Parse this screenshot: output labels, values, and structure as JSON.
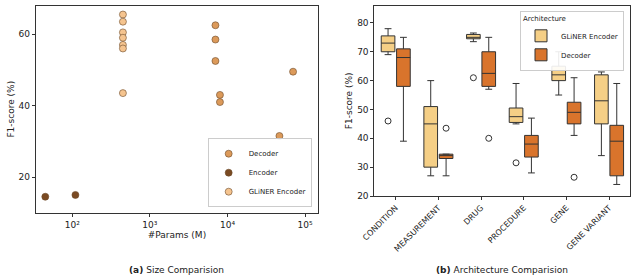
{
  "chart_data": [
    {
      "type": "scatter",
      "title": "(a) Size Comparision",
      "x_label": "#Params (M)",
      "y_label": "F1-score (%)",
      "log": "x",
      "xlim": [
        34,
        147000
      ],
      "xticks": [
        {
          "value": 100,
          "label": "10²"
        },
        {
          "value": 1000,
          "label": "10³"
        },
        {
          "value": 10000,
          "label": "10⁴"
        },
        {
          "value": 100000,
          "label": "10⁵"
        }
      ],
      "ylim": [
        10,
        68
      ],
      "yticks": [
        20,
        40,
        60
      ],
      "grid": false,
      "legend": "lower right",
      "series": [
        {
          "name": "Decoder",
          "color": "#dc9a5a",
          "marker": "circle",
          "x": [
            7000,
            7000,
            7000,
            8000,
            8000,
            46700,
            70000
          ],
          "values": [
            62.5,
            58.5,
            52.5,
            43,
            41,
            31.5,
            49.5
          ]
        },
        {
          "name": "Encoder",
          "color": "#7a4a22",
          "marker": "circle",
          "x": [
            45,
            110
          ],
          "values": [
            14.5,
            15
          ]
        },
        {
          "name": "GLiNER Encoder",
          "color": "#f5c48f",
          "marker": "circle",
          "x": [
            450,
            450,
            450,
            450,
            450,
            450,
            450
          ],
          "values": [
            65.5,
            63.5,
            60.5,
            59,
            57,
            56,
            43.5
          ]
        }
      ]
    },
    {
      "type": "box",
      "title": "(b) Architecture Comparision",
      "y_label": "F1-score (%)",
      "legend_title": "Architecture",
      "legend": "upper right",
      "categories": [
        "CONDITION",
        "MEASUREMENT",
        "DRUG",
        "PROCEDURE",
        "GENE",
        "GENE VARIANT"
      ],
      "ylim": [
        20,
        86
      ],
      "yticks": [
        20,
        30,
        40,
        50,
        60,
        70,
        80
      ],
      "grid": false,
      "series": [
        {
          "name": "GLiNER Encoder",
          "color": "#f5cf86",
          "lowerfence": [
            69,
            27,
            73.5,
            45,
            55,
            34
          ],
          "q1": [
            70,
            30,
            74.5,
            45.5,
            60,
            45
          ],
          "median": [
            73,
            45,
            75,
            47.5,
            62,
            53
          ],
          "q3": [
            75.5,
            51,
            76,
            50.5,
            65,
            62
          ],
          "upperfence": [
            78,
            60,
            76.5,
            59,
            70,
            63
          ],
          "outliers": [
            [
              46
            ],
            [],
            [
              61
            ],
            [
              31.5
            ],
            [],
            []
          ]
        },
        {
          "name": "Decoder",
          "color": "#d9742c",
          "lowerfence": [
            39,
            27,
            57,
            28,
            41,
            24
          ],
          "q1": [
            58,
            33,
            58,
            33.5,
            45,
            27
          ],
          "median": [
            68,
            34,
            62.5,
            38,
            49,
            39
          ],
          "q3": [
            71,
            34.5,
            70,
            41,
            52.5,
            44.5
          ],
          "upperfence": [
            75,
            34.5,
            75,
            47,
            61,
            59
          ],
          "outliers": [
            [],
            [
              43.5
            ],
            [
              40
            ],
            [],
            [
              26.5
            ],
            []
          ]
        }
      ]
    }
  ]
}
